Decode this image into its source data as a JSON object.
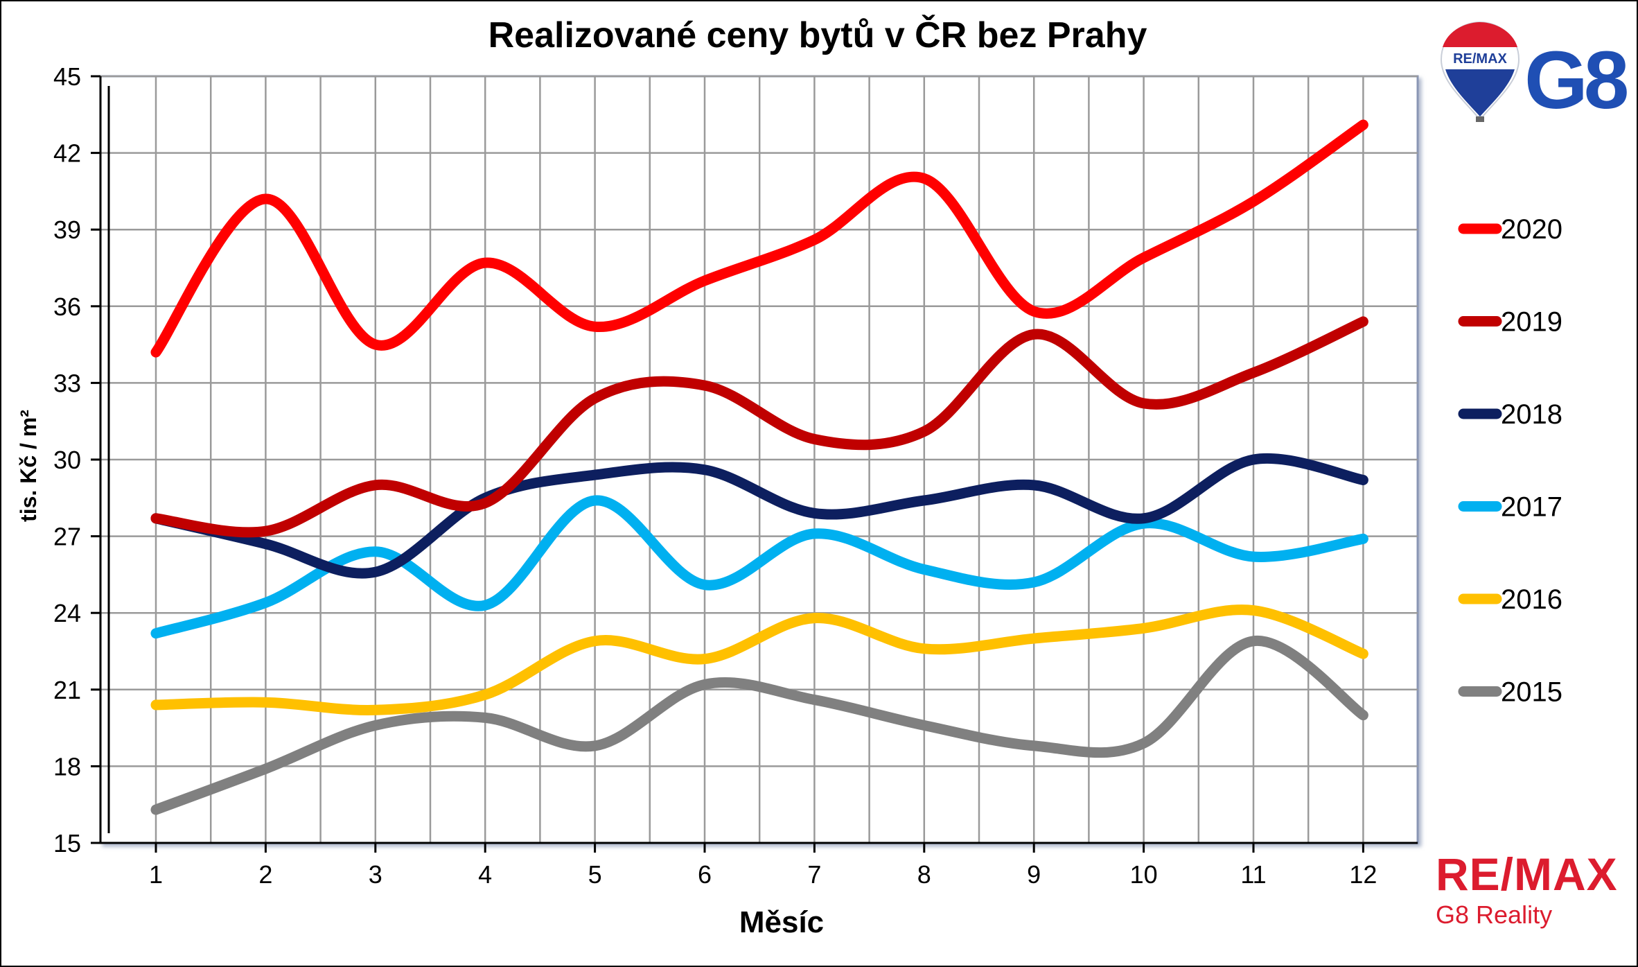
{
  "chart_data": {
    "type": "line",
    "title": "Realizované ceny bytů v ČR bez Prahy",
    "xlabel": "Měsíc",
    "ylabel": "tis. Kč / m²",
    "ylim": [
      15,
      45
    ],
    "yticks": [
      15,
      18,
      21,
      24,
      27,
      30,
      33,
      36,
      39,
      42,
      45
    ],
    "x": [
      1,
      2,
      3,
      4,
      5,
      6,
      7,
      8,
      9,
      10,
      11,
      12
    ],
    "grid": true,
    "legend": "right",
    "series": [
      {
        "name": "2020",
        "color": "#ff0000",
        "values": [
          34.2,
          40.2,
          34.5,
          37.7,
          35.2,
          37.0,
          38.6,
          41.0,
          35.8,
          37.9,
          40.1,
          43.1
        ]
      },
      {
        "name": "2019",
        "color": "#c00000",
        "values": [
          27.7,
          27.2,
          29.0,
          28.3,
          32.4,
          32.9,
          30.8,
          31.1,
          34.9,
          32.2,
          33.4,
          35.4
        ]
      },
      {
        "name": "2018",
        "color": "#0d1f5f",
        "values": [
          27.7,
          26.7,
          25.6,
          28.5,
          29.4,
          29.6,
          27.9,
          28.4,
          29.0,
          27.7,
          30.0,
          29.2
        ]
      },
      {
        "name": "2017",
        "color": "#00b0f0",
        "values": [
          23.2,
          24.4,
          26.4,
          24.3,
          28.4,
          25.1,
          27.1,
          25.7,
          25.2,
          27.5,
          26.2,
          26.9
        ]
      },
      {
        "name": "2016",
        "color": "#ffc000",
        "values": [
          20.4,
          20.5,
          20.2,
          20.8,
          22.9,
          22.2,
          23.8,
          22.6,
          23.0,
          23.4,
          24.1,
          22.4
        ]
      },
      {
        "name": "2015",
        "color": "#808080",
        "values": [
          16.3,
          17.9,
          19.6,
          19.9,
          18.8,
          21.2,
          20.6,
          19.6,
          18.8,
          18.9,
          22.9,
          20.0
        ]
      }
    ]
  },
  "branding": {
    "balloon_text": "RE/MAX",
    "logo_g8": "G8",
    "remax": "RE/MAX",
    "subtitle": "G8 Reality"
  }
}
